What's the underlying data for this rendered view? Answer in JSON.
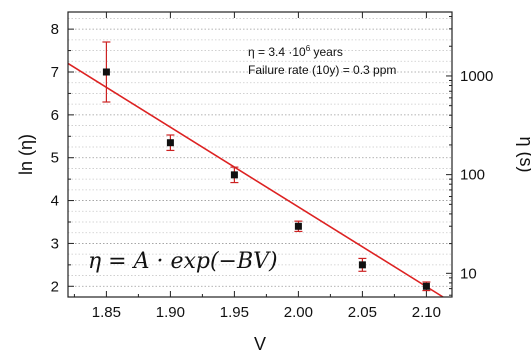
{
  "chart_data": {
    "type": "scatter",
    "title": "",
    "xlabel": "V",
    "ylabel": "ln (η)",
    "ylabel_right": "η (s)",
    "xlim": [
      1.82,
      2.12
    ],
    "ylim": [
      1.75,
      8.4
    ],
    "x_ticks": [
      1.85,
      1.9,
      1.95,
      2.0,
      2.05,
      2.1
    ],
    "x_tick_labels": [
      "1.85",
      "1.90",
      "1.95",
      "2.00",
      "2.05",
      "2.10"
    ],
    "y_ticks": [
      2,
      3,
      4,
      5,
      6,
      7,
      8
    ],
    "y_tick_labels": [
      "2",
      "3",
      "4",
      "5",
      "6",
      "7",
      "8"
    ],
    "right_axis": {
      "scale": "log",
      "ticks": [
        10,
        100,
        1000
      ],
      "tick_labels": [
        "10",
        "100",
        "1000"
      ]
    },
    "grid": "dotted horizontal",
    "series": [
      {
        "marker": "square",
        "color": "#111111",
        "error_color": "#cc2222",
        "points": [
          {
            "x": 1.85,
            "y": 7.0,
            "err": 0.7
          },
          {
            "x": 1.9,
            "y": 5.35,
            "err": 0.18
          },
          {
            "x": 1.95,
            "y": 4.6,
            "err": 0.18
          },
          {
            "x": 2.0,
            "y": 3.4,
            "err": 0.12
          },
          {
            "x": 2.05,
            "y": 2.5,
            "err": 0.15
          },
          {
            "x": 2.1,
            "y": 2.0,
            "err": 0.1
          }
        ]
      }
    ],
    "fit_line": {
      "color": "#dd2222",
      "x": [
        1.82,
        2.113
      ],
      "y": [
        7.2,
        1.75
      ]
    },
    "annotations": {
      "line1_prefix": "η = 3.4 ·10",
      "line1_exp": "6",
      "line1_suffix": " years",
      "line2": "Failure rate (10y) = 0.3 ppm",
      "formula": "η = A · exp(−BV)"
    }
  }
}
